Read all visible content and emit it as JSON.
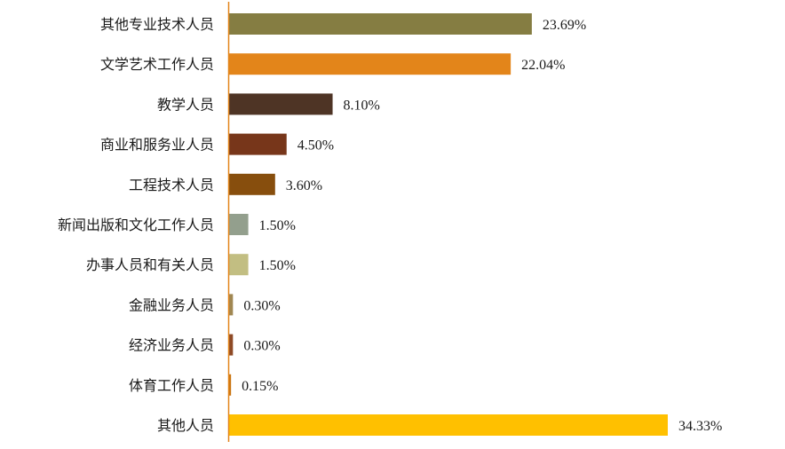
{
  "chart_data": {
    "type": "bar",
    "orientation": "horizontal",
    "categories": [
      "其他专业技术人员",
      "文学艺术工作人员",
      "教学人员",
      "商业和服务业人员",
      "工程技术人员",
      "新闻出版和文化工作人员",
      "办事人员和有关人员",
      "金融业务人员",
      "经济业务人员",
      "体育工作人员",
      "其他人员"
    ],
    "values": [
      23.69,
      22.04,
      8.1,
      4.5,
      3.6,
      1.5,
      1.5,
      0.3,
      0.3,
      0.15,
      34.33
    ],
    "value_labels": [
      "23.69%",
      "22.04%",
      "8.10%",
      "4.50%",
      "3.60%",
      "1.50%",
      "1.50%",
      "0.30%",
      "0.30%",
      "0.15%",
      "34.33%"
    ],
    "colors": [
      "#857D42",
      "#E3851A",
      "#4E3425",
      "#77361A",
      "#874E0D",
      "#939F8D",
      "#C2BE82",
      "#A08752",
      "#8E4A26",
      "#C9730F",
      "#FFC000"
    ],
    "axis_color": "#E3851A",
    "xlim": [
      0,
      35
    ],
    "title": "",
    "xlabel": "",
    "ylabel": "",
    "grid": false,
    "legend": "none"
  }
}
